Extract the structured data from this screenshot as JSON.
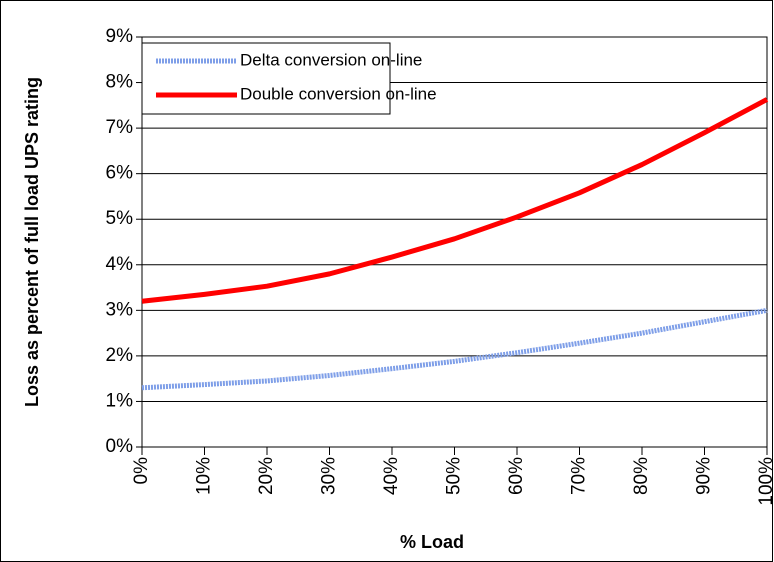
{
  "chart_data": {
    "type": "line",
    "x_label": "% Load",
    "y_label": "Loss as percent of full load UPS rating",
    "x": [
      0,
      10,
      20,
      30,
      40,
      50,
      60,
      70,
      80,
      90,
      100
    ],
    "series": [
      {
        "name": "Delta conversion on-line",
        "color": "#7f9fe8",
        "values": [
          1.3,
          1.37,
          1.45,
          1.57,
          1.72,
          1.88,
          2.07,
          2.28,
          2.5,
          2.75,
          3.0
        ]
      },
      {
        "name": "Double conversion on-line",
        "color": "#ff0000",
        "values": [
          3.2,
          3.35,
          3.53,
          3.8,
          4.17,
          4.57,
          5.05,
          5.58,
          6.2,
          6.9,
          7.63
        ]
      }
    ],
    "xlim": [
      0,
      100
    ],
    "xticks": [
      {
        "value": 0,
        "label": "0%"
      },
      {
        "value": 10,
        "label": "10%"
      },
      {
        "value": 20,
        "label": "20%"
      },
      {
        "value": 30,
        "label": "30%"
      },
      {
        "value": 40,
        "label": "40%"
      },
      {
        "value": 50,
        "label": "50%"
      },
      {
        "value": 60,
        "label": "60%"
      },
      {
        "value": 70,
        "label": "70%"
      },
      {
        "value": 80,
        "label": "80%"
      },
      {
        "value": 90,
        "label": "90%"
      },
      {
        "value": 100,
        "label": "100%"
      }
    ],
    "ylim": [
      0,
      9
    ],
    "yticks": [
      {
        "value": 0,
        "label": "0%"
      },
      {
        "value": 1,
        "label": "1%"
      },
      {
        "value": 2,
        "label": "2%"
      },
      {
        "value": 3,
        "label": "3%"
      },
      {
        "value": 4,
        "label": "4%"
      },
      {
        "value": 5,
        "label": "5%"
      },
      {
        "value": 6,
        "label": "6%"
      },
      {
        "value": 7,
        "label": "7%"
      },
      {
        "value": 8,
        "label": "8%"
      },
      {
        "value": 9,
        "label": "9%"
      }
    ],
    "grid": true,
    "legend": "upper left"
  }
}
